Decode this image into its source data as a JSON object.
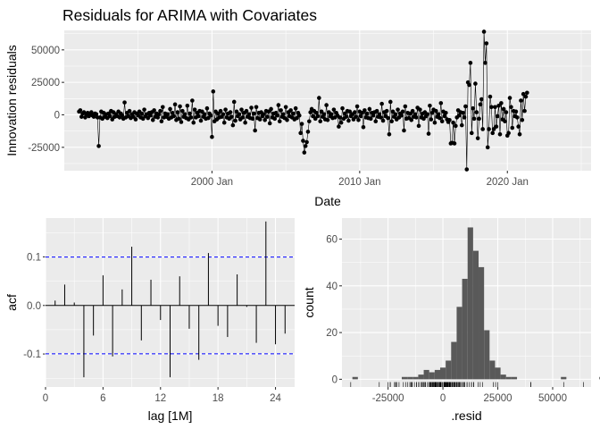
{
  "title": "Residuals for ARIMA with Covariates",
  "colors": {
    "panel": "#ebebeb",
    "ink": "#000000",
    "bar": "#595959",
    "conf_line": "#0000ff"
  },
  "chart_data": [
    {
      "type": "line",
      "ylabel": "Innovation residuals",
      "xlabel": "Date",
      "x_ticks": [
        "2000 Jan",
        "2010 Jan",
        "2020 Jan"
      ],
      "y_ticks": [
        "50000",
        "25000",
        "0",
        "-25000"
      ],
      "ylim": [
        -43000,
        65000
      ],
      "xlim": [
        "1990 Jan",
        "2025 Sep"
      ],
      "grid": true,
      "markers": "points",
      "series": [
        {
          "x_start": "1991 Jan",
          "x_step": "1 month",
          "values": [
            2500,
            3500,
            -1500,
            1000,
            2000,
            -2000,
            500,
            1500,
            -1000,
            0,
            2000,
            -500,
            -1500,
            1000,
            500,
            -2000,
            -24000,
            -2000,
            2500,
            -3000,
            1500,
            -1500,
            500,
            -2500,
            1000,
            -1000,
            3000,
            -3500,
            2000,
            -1500,
            500,
            -1000,
            2500,
            -2000,
            1000,
            -500,
            -3000,
            9500,
            -2000,
            1500,
            -1000,
            3000,
            -2500,
            500,
            -1500,
            2000,
            -3500,
            1000,
            -500,
            2500,
            -2000,
            1000,
            -3000,
            4000,
            -1000,
            500,
            -2500,
            1500,
            -500,
            2000,
            -4000,
            3500,
            -1500,
            1000,
            -2000,
            500,
            3000,
            -5000,
            6000,
            -2000,
            1000,
            -1500,
            500,
            -3000,
            4500,
            -2000,
            1500,
            -1000,
            8000,
            -4000,
            2000,
            -3000,
            6500,
            -5500,
            3000,
            -1500,
            500,
            -2500,
            7000,
            -3500,
            1000,
            -2000,
            11000,
            -6000,
            4000,
            -2000,
            1500,
            -1000,
            3000,
            -4500,
            2500,
            -1500,
            500,
            -3000,
            5000,
            -2500,
            1000,
            -500,
            -17000,
            18000,
            -5000,
            2500,
            -3500,
            1000,
            -2000,
            3000,
            -1500,
            500,
            -6000,
            4000,
            -2000,
            1000,
            -3000,
            2000,
            -1500,
            -8000,
            10000,
            -4500,
            2500,
            -1000,
            500,
            -3500,
            4000,
            -2000,
            1500,
            -6000,
            3000,
            -1500,
            500,
            -2500,
            5500,
            -3000,
            1000,
            -12000,
            6000,
            -2500,
            1500,
            -3500,
            2000,
            -1000,
            500,
            -4000,
            3000,
            -1500,
            2500,
            -6500,
            4500,
            -2000,
            1000,
            -3000,
            1500,
            -500,
            7500,
            -5000,
            3500,
            -1500,
            500,
            -2500,
            6000,
            -4000,
            2000,
            -1000,
            3500,
            -2000,
            1000,
            -3500,
            5000,
            -2500,
            1500,
            -500,
            -14000,
            -7000,
            -20000,
            -29000,
            -24000,
            -21000,
            -13000,
            -5000,
            2000,
            4500,
            -1000,
            3000,
            -3000,
            1500,
            -1000,
            13000,
            -5000,
            2500,
            -1500,
            500,
            -3500,
            7500,
            -4000,
            2000,
            -1000,
            500,
            -2500,
            4000,
            -2000,
            1500,
            -500,
            -9000,
            -2000,
            -6000,
            5000,
            -3000,
            1000,
            -1500,
            3000,
            -4500,
            2500,
            -1000,
            500,
            -3500,
            2000,
            -1500,
            6500,
            -4000,
            2500,
            -1000,
            1500,
            -9500,
            3500,
            -2000,
            1000,
            -2500,
            4500,
            -3000,
            1500,
            -500,
            2000,
            -5000,
            3000,
            -1500,
            500,
            -2000,
            8500,
            -4500,
            2000,
            -1000,
            3000,
            -2500,
            -15000,
            10000,
            -5000,
            2500,
            -1500,
            500,
            -3500,
            4000,
            -2000,
            1000,
            -500,
            2500,
            -12000,
            6500,
            -3000,
            1500,
            -2500,
            1000,
            -4000,
            3000,
            -1500,
            500,
            -2000,
            5500,
            -8500,
            4000,
            -2000,
            1000,
            -3000,
            2000,
            -1000,
            500,
            -14500,
            7000,
            -3500,
            1500,
            4000,
            -6000,
            3000,
            -1500,
            500,
            -2500,
            9000,
            -5000,
            2500,
            -1000,
            1500,
            -3500,
            -5500,
            -4000,
            -22000,
            -21500,
            -6000,
            -22000,
            -8500,
            -2000,
            3500,
            -500,
            2000,
            -8000,
            1500,
            -2000,
            6500,
            -42000,
            25000,
            23000,
            40000,
            -14000,
            5000,
            -3000,
            24000,
            2000,
            -18000,
            -3000,
            8000,
            12000,
            -11000,
            64000,
            40000,
            55000,
            -25000,
            -11000,
            14000,
            6000,
            -14000,
            -11000,
            6000,
            -9000,
            -1000,
            7000,
            -15000,
            9000,
            -3500,
            4500,
            -5000,
            2000,
            -16000,
            -14000,
            13000,
            6000,
            -10000,
            3000,
            -1000,
            2500,
            -2000,
            -9000,
            -15000,
            11000,
            -4000,
            16000,
            3000,
            14000,
            17000
          ]
        }
      ]
    },
    {
      "type": "bar",
      "ylabel": "acf",
      "xlabel": "lag [1M]",
      "x_ticks": [
        "0",
        "6",
        "12",
        "18",
        "24"
      ],
      "y_ticks": [
        "0.1",
        "0.0",
        "-0.1"
      ],
      "lags": [
        1,
        2,
        3,
        4,
        5,
        6,
        7,
        8,
        9,
        10,
        11,
        12,
        13,
        14,
        15,
        16,
        17,
        18,
        19,
        20,
        21,
        22,
        23,
        24,
        25
      ],
      "values": [
        0.01,
        0.043,
        0.006,
        -0.148,
        -0.062,
        0.062,
        -0.105,
        0.033,
        0.121,
        -0.072,
        0.053,
        -0.03,
        -0.148,
        0.06,
        -0.048,
        -0.112,
        0.108,
        -0.042,
        -0.065,
        0.064,
        -0.003,
        -0.077,
        0.173,
        -0.08,
        -0.058
      ],
      "conf_limit": 0.0997,
      "xlim": [
        0,
        26
      ],
      "ylim": [
        -0.168,
        0.18
      ],
      "grid": true
    },
    {
      "type": "bar",
      "subtype": "histogram_with_rug",
      "ylabel": "count",
      "xlabel": ".resid",
      "x_ticks": [
        "-25000",
        "0",
        "25000",
        "50000"
      ],
      "y_ticks": [
        "0",
        "20",
        "40",
        "60"
      ],
      "bin_width": 2500,
      "bins_start": -43750,
      "counts": [
        0,
        1,
        0,
        0,
        0,
        0,
        0,
        0,
        0,
        0,
        1,
        1,
        1,
        2,
        4,
        3,
        4,
        5,
        8,
        16,
        31,
        43,
        65,
        55,
        48,
        21,
        8,
        5,
        2,
        1,
        1,
        0,
        0,
        0,
        0,
        0,
        0,
        0,
        0,
        1,
        0,
        0,
        0,
        0,
        0,
        0,
        1
      ],
      "xlim": [
        -46000,
        67500
      ],
      "ylim": [
        -3.3,
        69
      ],
      "grid": true
    }
  ]
}
